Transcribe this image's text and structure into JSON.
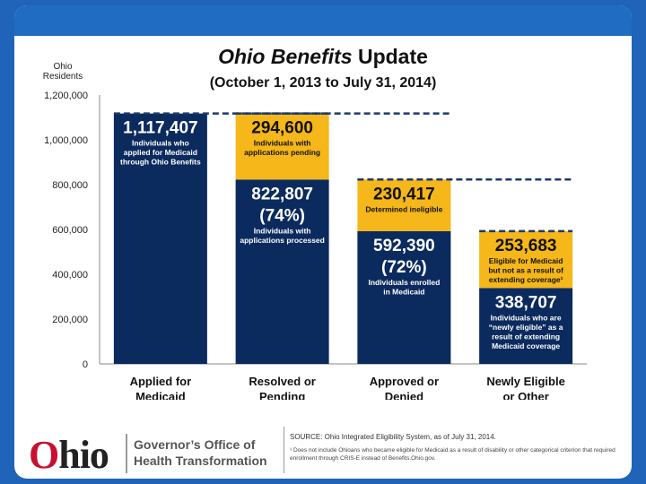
{
  "header": {
    "title_italic": "Ohio Benefits",
    "title_rest": " Update",
    "subtitle": "(October 1, 2013 to July 31, 2014)"
  },
  "colors": {
    "navy": "#0b2a5e",
    "gold": "#f5b719",
    "dashed": "#1b3a6b"
  },
  "chart_data": {
    "type": "bar",
    "stacked": true,
    "ylabel": "Ohio Residents",
    "ylim": [
      0,
      1200000
    ],
    "yticks": [
      "0",
      "200,000",
      "400,000",
      "600,000",
      "800,000",
      "1,000,000",
      "1,200,000"
    ],
    "categories": [
      "Applied for Medicaid",
      "Resolved or Pending",
      "Approved or Denied",
      "Newly Eligible or Other"
    ],
    "bars": [
      {
        "category": "Applied for Medicaid",
        "segments": [
          {
            "value": 1117407,
            "color": "navy",
            "value_label": "1,117,407",
            "pct": "",
            "desc": "Individuals who applied for Medicaid through Ohio Benefits"
          }
        ]
      },
      {
        "category": "Resolved or Pending",
        "segments": [
          {
            "value": 822807,
            "color": "navy",
            "value_label": "822,807",
            "pct": "(74%)",
            "desc": "Individuals with applications processed"
          },
          {
            "value": 294600,
            "color": "gold",
            "value_label": "294,600",
            "pct": "",
            "desc": "Individuals with applications pending"
          }
        ]
      },
      {
        "category": "Approved or Denied",
        "segments": [
          {
            "value": 592390,
            "color": "navy",
            "value_label": "592,390",
            "pct": "(72%)",
            "desc": "Individuals enrolled in Medicaid"
          },
          {
            "value": 230417,
            "color": "gold",
            "value_label": "230,417",
            "pct": "",
            "desc": "Determined ineligible"
          }
        ]
      },
      {
        "category": "Newly Eligible or Other",
        "segments": [
          {
            "value": 338707,
            "color": "navy",
            "value_label": "338,707",
            "pct": "",
            "desc": "Individuals who are “newly eligible” as a result of extending Medicaid coverage"
          },
          {
            "value": 253683,
            "color": "gold",
            "value_label": "253,683",
            "pct": "",
            "desc": "Eligible for Medicaid but not as a result of extending coverage¹"
          }
        ]
      }
    ]
  },
  "footer": {
    "logo_o": "O",
    "logo_rest": "hio",
    "org_line1": "Governor’s Office of",
    "org_line2": "Health Transformation",
    "source": "SOURCE: Ohio Integrated Eligibility System, as of July 31, 2014.",
    "note": "¹ Does not include Ohioans who became eligible for Medicaid as a result of disability or other categorical criterion that required enrollment through CRIS-E instead of Benefits.Ohio.gov."
  }
}
